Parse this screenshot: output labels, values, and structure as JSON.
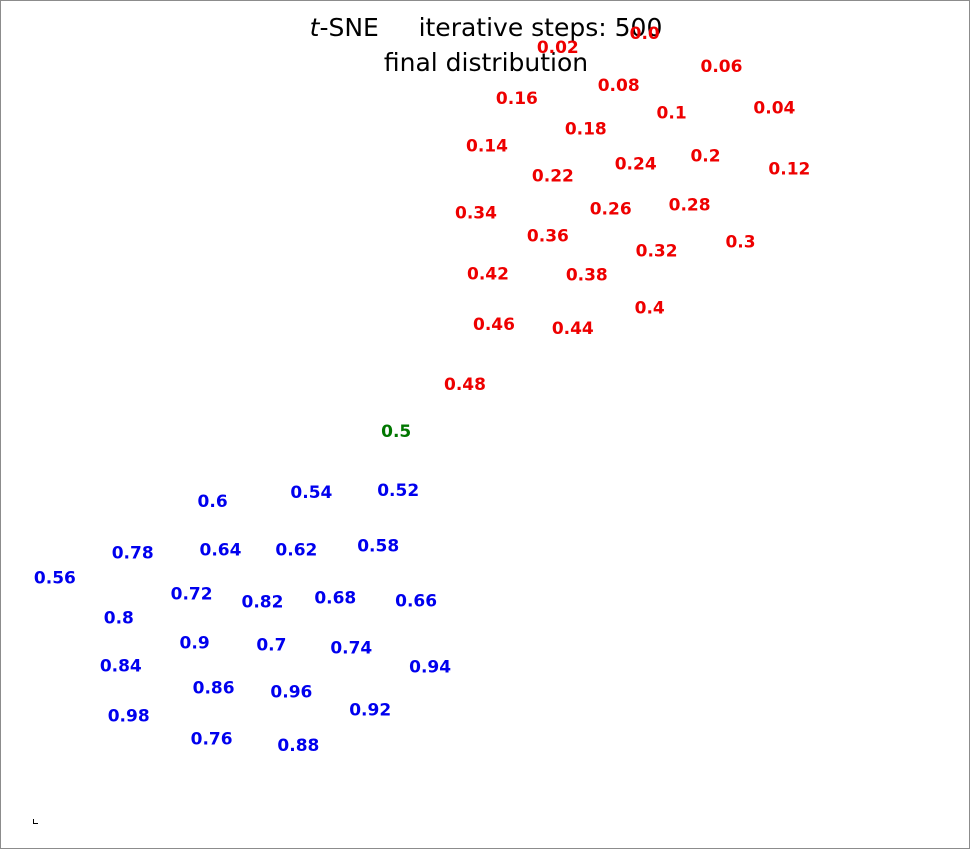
{
  "title": {
    "method_prefix": "t",
    "method_suffix": "-SNE",
    "steps_label": "iterative steps: 500",
    "subtitle": "final distribution"
  },
  "colors": {
    "high": "#0000ee",
    "middle": "#007700",
    "low": "#ee0000"
  },
  "chart_data": {
    "type": "scatter",
    "title": "t-SNE     iterative steps: 500",
    "subtitle": "final distribution",
    "xlabel": "",
    "ylabel": "",
    "xlim": [
      0,
      970
    ],
    "ylim": [
      849,
      0
    ],
    "grid": false,
    "marker": "text labels",
    "points": [
      {
        "label": "0.0",
        "x": 645,
        "y": 816,
        "group": "low"
      },
      {
        "label": "0.02",
        "x": 558,
        "y": 802,
        "group": "low"
      },
      {
        "label": "0.04",
        "x": 775,
        "y": 741,
        "group": "low"
      },
      {
        "label": "0.06",
        "x": 722,
        "y": 783,
        "group": "low"
      },
      {
        "label": "0.08",
        "x": 619,
        "y": 764,
        "group": "low"
      },
      {
        "label": "0.1",
        "x": 672,
        "y": 736,
        "group": "low"
      },
      {
        "label": "0.12",
        "x": 790,
        "y": 680,
        "group": "low"
      },
      {
        "label": "0.14",
        "x": 487,
        "y": 703,
        "group": "low"
      },
      {
        "label": "0.16",
        "x": 517,
        "y": 751,
        "group": "low"
      },
      {
        "label": "0.18",
        "x": 586,
        "y": 720,
        "group": "low"
      },
      {
        "label": "0.2",
        "x": 706,
        "y": 693,
        "group": "low"
      },
      {
        "label": "0.22",
        "x": 553,
        "y": 673,
        "group": "low"
      },
      {
        "label": "0.24",
        "x": 636,
        "y": 685,
        "group": "low"
      },
      {
        "label": "0.26",
        "x": 611,
        "y": 640,
        "group": "low"
      },
      {
        "label": "0.28",
        "x": 690,
        "y": 644,
        "group": "low"
      },
      {
        "label": "0.3",
        "x": 741,
        "y": 607,
        "group": "low"
      },
      {
        "label": "0.32",
        "x": 657,
        "y": 598,
        "group": "low"
      },
      {
        "label": "0.34",
        "x": 476,
        "y": 636,
        "group": "low"
      },
      {
        "label": "0.36",
        "x": 548,
        "y": 613,
        "group": "low"
      },
      {
        "label": "0.38",
        "x": 587,
        "y": 574,
        "group": "low"
      },
      {
        "label": "0.4",
        "x": 650,
        "y": 541,
        "group": "low"
      },
      {
        "label": "0.42",
        "x": 488,
        "y": 575,
        "group": "low"
      },
      {
        "label": "0.44",
        "x": 573,
        "y": 520,
        "group": "low"
      },
      {
        "label": "0.46",
        "x": 494,
        "y": 524,
        "group": "low"
      },
      {
        "label": "0.48",
        "x": 465,
        "y": 464,
        "group": "low"
      },
      {
        "label": "0.5",
        "x": 396,
        "y": 417,
        "group": "middle"
      },
      {
        "label": "0.52",
        "x": 398,
        "y": 358,
        "group": "high"
      },
      {
        "label": "0.54",
        "x": 311,
        "y": 356,
        "group": "high"
      },
      {
        "label": "0.56",
        "x": 54,
        "y": 270,
        "group": "high"
      },
      {
        "label": "0.58",
        "x": 378,
        "y": 302,
        "group": "high"
      },
      {
        "label": "0.6",
        "x": 212,
        "y": 347,
        "group": "high"
      },
      {
        "label": "0.62",
        "x": 296,
        "y": 298,
        "group": "high"
      },
      {
        "label": "0.64",
        "x": 220,
        "y": 298,
        "group": "high"
      },
      {
        "label": "0.66",
        "x": 416,
        "y": 247,
        "group": "high"
      },
      {
        "label": "0.68",
        "x": 335,
        "y": 250,
        "group": "high"
      },
      {
        "label": "0.7",
        "x": 271,
        "y": 203,
        "group": "high"
      },
      {
        "label": "0.72",
        "x": 191,
        "y": 254,
        "group": "high"
      },
      {
        "label": "0.74",
        "x": 351,
        "y": 200,
        "group": "high"
      },
      {
        "label": "0.76",
        "x": 211,
        "y": 109,
        "group": "high"
      },
      {
        "label": "0.78",
        "x": 132,
        "y": 295,
        "group": "high"
      },
      {
        "label": "0.8",
        "x": 118,
        "y": 230,
        "group": "high"
      },
      {
        "label": "0.82",
        "x": 262,
        "y": 246,
        "group": "high"
      },
      {
        "label": "0.84",
        "x": 120,
        "y": 182,
        "group": "high"
      },
      {
        "label": "0.86",
        "x": 213,
        "y": 160,
        "group": "high"
      },
      {
        "label": "0.88",
        "x": 298,
        "y": 102,
        "group": "high"
      },
      {
        "label": "0.9",
        "x": 194,
        "y": 205,
        "group": "high"
      },
      {
        "label": "0.92",
        "x": 370,
        "y": 138,
        "group": "high"
      },
      {
        "label": "0.94",
        "x": 430,
        "y": 181,
        "group": "high"
      },
      {
        "label": "0.96",
        "x": 291,
        "y": 156,
        "group": "high"
      },
      {
        "label": "0.98",
        "x": 128,
        "y": 132,
        "group": "high"
      }
    ]
  }
}
